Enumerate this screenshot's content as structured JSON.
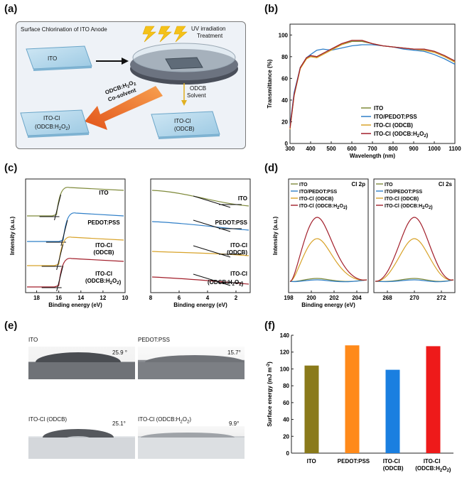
{
  "panels": {
    "a": "(a)",
    "b": "(b)",
    "c": "(c)",
    "d": "(d)",
    "e": "(e)",
    "f": "(f)"
  },
  "schematic": {
    "title": "Surface Chlorination of ITO Anode",
    "uv_label_1": "UV irradiation",
    "uv_label_2": "Treatment",
    "ito": "ITO",
    "cosolvent_1": "ODCB:H",
    "cosolvent_sub": "2",
    "cosolvent_2": "O",
    "cosolvent_sub2": "2",
    "cosolvent_3": "Co-solvent",
    "odcb_solvent_1": "ODCB",
    "odcb_solvent_2": "Solvent",
    "itocl_h2o2_1": "ITO-Cl",
    "itocl_h2o2_2": "(ODCB:H",
    "itocl_h2o2_sub": "2",
    "itocl_h2o2_3": "O",
    "itocl_h2o2_sub2": "2",
    "itocl_h2o2_4": ")",
    "itocl_odcb_1": "ITO-Cl",
    "itocl_odcb_2": "(ODCB)"
  },
  "series_colors": {
    "ITO": "#7f8a3a",
    "PEDOT": "#2f7fc8",
    "ODCB": "#d8a32a",
    "H2O2": "#a21e2a"
  },
  "chart_data": [
    {
      "id": "b",
      "type": "line",
      "xlabel": "Wavelength (nm)",
      "ylabel": "Transmittance (%)",
      "xlim": [
        300,
        1100
      ],
      "ylim": [
        0,
        110
      ],
      "xticks": [
        300,
        400,
        500,
        600,
        700,
        800,
        900,
        1000,
        1100
      ],
      "yticks": [
        0,
        20,
        40,
        60,
        80,
        100
      ],
      "legend_position": "bottom-right",
      "series": [
        {
          "name": "ITO",
          "color": "#7f8a3a",
          "x": [
            300,
            320,
            350,
            380,
            400,
            430,
            460,
            500,
            550,
            600,
            650,
            700,
            750,
            800,
            850,
            900,
            950,
            1000,
            1050,
            1100
          ],
          "y": [
            14,
            45,
            70,
            79,
            81,
            80,
            83,
            87,
            91,
            94,
            94,
            92,
            90,
            89,
            88,
            87,
            87,
            85,
            81,
            76
          ]
        },
        {
          "name": "ITO/PEDOT:PSS",
          "color": "#2f7fc8",
          "x": [
            300,
            320,
            350,
            380,
            400,
            430,
            460,
            500,
            550,
            600,
            650,
            700,
            750,
            800,
            850,
            900,
            950,
            1000,
            1050,
            1100
          ],
          "y": [
            16,
            47,
            70,
            79,
            82,
            86,
            87,
            86,
            88,
            90,
            91,
            91,
            90,
            89,
            87,
            86,
            85,
            82,
            78,
            73
          ]
        },
        {
          "name": "ITO-Cl (ODCB)",
          "color": "#d8a32a",
          "x": [
            300,
            320,
            350,
            380,
            400,
            430,
            460,
            500,
            550,
            600,
            650,
            700,
            750,
            800,
            850,
            900,
            950,
            1000,
            1050,
            1100
          ],
          "y": [
            13,
            44,
            69,
            78,
            80,
            79,
            82,
            86,
            91,
            95,
            95,
            92,
            90,
            89,
            88,
            87,
            86,
            84,
            80,
            75
          ]
        },
        {
          "name": "ITO-Cl (ODCB:H2O2)",
          "color": "#a21e2a",
          "x": [
            300,
            320,
            350,
            380,
            400,
            430,
            460,
            500,
            550,
            600,
            650,
            700,
            750,
            800,
            850,
            900,
            950,
            1000,
            1050,
            1100
          ],
          "y": [
            14,
            45,
            70,
            79,
            81,
            80,
            83,
            87,
            92,
            95,
            95,
            92,
            90,
            89,
            88,
            87,
            87,
            85,
            81,
            76
          ]
        }
      ]
    },
    {
      "id": "c-left",
      "type": "line",
      "xlabel": "Binding energy (eV)",
      "ylabel": "Intensity (a.u.)",
      "xlim": [
        19,
        10
      ],
      "xticks": [
        18,
        16,
        14,
        12,
        10
      ],
      "series_labels": [
        {
          "text": "ITO"
        },
        {
          "text": "PEDOT:PSS"
        },
        {
          "text": "ITO-Cl"
        },
        {
          "text": "(ODCB)"
        },
        {
          "text": "ITO-Cl"
        },
        {
          "text": "(ODCB:H2O2)"
        }
      ]
    },
    {
      "id": "c-right",
      "type": "line",
      "xlabel": "Binding energy (eV)",
      "xlim": [
        8,
        1
      ],
      "xticks": [
        8,
        6,
        4,
        2
      ],
      "series_labels": [
        {
          "text": "ITO"
        },
        {
          "text": "PEDOT:PSS"
        },
        {
          "text": "ITO-Cl"
        },
        {
          "text": "(ODCB)"
        },
        {
          "text": "ITO-Cl"
        },
        {
          "text": "(ODCB:H2O2)"
        }
      ]
    },
    {
      "id": "d-left",
      "type": "line",
      "title": "Cl 2p",
      "xlabel": "Binding energy (eV)",
      "ylabel": "Intensity (a.u.)",
      "xlim": [
        198,
        205
      ],
      "xticks": [
        198,
        200,
        202,
        204
      ],
      "legend": [
        "ITO",
        "ITO/PEDOT:PSS",
        "ITO-Cl (ODCB)",
        "ITO-Cl (ODCB:H2O2)"
      ]
    },
    {
      "id": "d-right",
      "type": "line",
      "title": "Cl 2s",
      "xlim": [
        267,
        273
      ],
      "xticks": [
        268,
        270,
        272
      ],
      "legend": [
        "ITO",
        "ITO/PEDOT:PSS",
        "ITO-Cl (ODCB)",
        "ITO-Cl (ODCB:H2O2)"
      ]
    },
    {
      "id": "f",
      "type": "bar",
      "ylabel": "Surface energy (mJ m-2)",
      "ylim": [
        0,
        140
      ],
      "yticks": [
        0,
        20,
        40,
        60,
        80,
        100,
        120,
        140
      ],
      "categories": [
        "ITO",
        "PEDOT:PSS",
        "ITO-Cl\n(ODCB)",
        "ITO-Cl\n(ODCB:H2O2)"
      ],
      "values": [
        104,
        128,
        99,
        127
      ],
      "colors": [
        "#8a7a1a",
        "#ff8a1a",
        "#1a7fe0",
        "#ee1a1a"
      ]
    }
  ],
  "contact_angles": [
    {
      "label": "ITO",
      "angle": "25.9 °"
    },
    {
      "label": "PEDOT:PSS",
      "angle": "15.7°"
    },
    {
      "label": "ITO-Cl (ODCB)",
      "angle": "25.1°"
    },
    {
      "label": "ITO-Cl (ODCB:H2O2)",
      "angle": "9.9°"
    }
  ]
}
